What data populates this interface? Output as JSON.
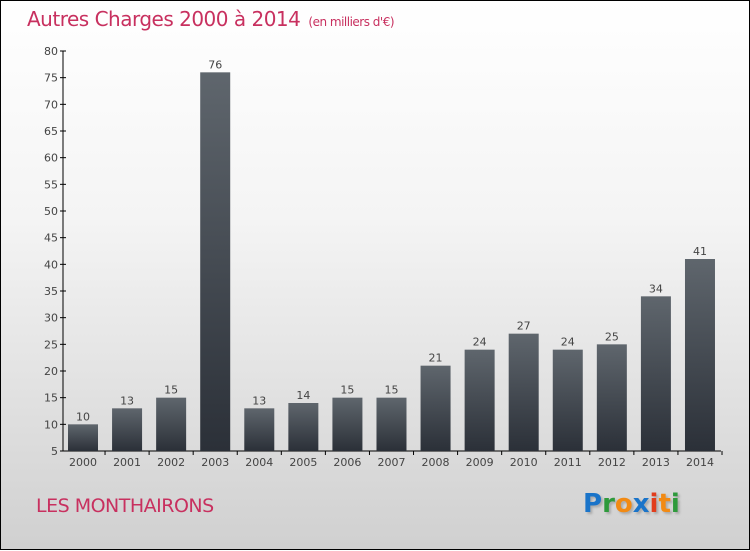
{
  "chart_data": {
    "type": "bar",
    "title": "Autres Charges 2000 à 2014",
    "subtitle": "(en milliers d'€)",
    "categories": [
      "2000",
      "2001",
      "2002",
      "2003",
      "2004",
      "2005",
      "2006",
      "2007",
      "2008",
      "2009",
      "2010",
      "2011",
      "2012",
      "2013",
      "2014"
    ],
    "values": [
      10,
      13,
      15,
      76,
      13,
      14,
      15,
      15,
      21,
      24,
      27,
      24,
      25,
      34,
      41
    ],
    "ylim": [
      5,
      80
    ],
    "yticks": [
      5,
      10,
      15,
      20,
      25,
      30,
      35,
      40,
      45,
      50,
      55,
      60,
      65,
      70,
      75,
      80
    ],
    "xlabel": "",
    "ylabel": "",
    "grid": false
  },
  "commune": "LES MONTHAIRONS",
  "logo": {
    "letters": [
      "P",
      "r",
      "o",
      "x",
      "i",
      "t",
      "i"
    ],
    "colors": [
      "#1a74c9",
      "#2e9a3c",
      "#f28a13",
      "#1a74c9",
      "#e23d1c",
      "#f28a13",
      "#2e9a3c"
    ]
  }
}
